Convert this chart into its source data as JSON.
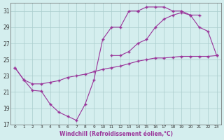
{
  "xlabel": "Windchill (Refroidissement éolien,°C)",
  "hours": [
    0,
    1,
    2,
    3,
    4,
    5,
    6,
    7,
    8,
    9,
    10,
    11,
    12,
    13,
    14,
    15,
    16,
    17,
    18,
    19,
    20,
    21,
    22,
    23
  ],
  "line_main": [
    24.0,
    22.5,
    21.2,
    21.1,
    19.5,
    18.5,
    18.0,
    17.5,
    19.5,
    22.5,
    27.5,
    29.0,
    29.0,
    31.0,
    31.0,
    null,
    null,
    null,
    null,
    null,
    null,
    null,
    null,
    null
  ],
  "line_top": [
    null,
    null,
    null,
    null,
    null,
    null,
    null,
    null,
    null,
    null,
    null,
    null,
    null,
    null,
    31.0,
    31.5,
    31.5,
    31.5,
    31.0,
    31.0,
    30.5,
    29.0,
    28.5,
    25.5
  ],
  "line_bot": [
    24.0,
    22.5,
    22.0,
    22.0,
    22.2,
    22.4,
    22.8,
    23.0,
    23.2,
    23.5,
    23.8,
    24.0,
    24.2,
    24.5,
    24.8,
    25.0,
    25.2,
    25.2,
    25.3,
    25.4,
    25.4,
    25.4,
    25.4,
    25.5
  ],
  "line_mid": [
    null,
    null,
    null,
    null,
    null,
    null,
    null,
    null,
    null,
    null,
    null,
    25.5,
    25.5,
    26.0,
    27.0,
    27.5,
    29.0,
    30.0,
    30.5,
    30.8,
    30.5,
    30.5,
    null,
    null
  ],
  "ylim": [
    17,
    32
  ],
  "yticks": [
    17,
    19,
    21,
    23,
    25,
    27,
    29,
    31
  ],
  "line_color": "#993399",
  "bg_color": "#d4eeee",
  "grid_color": "#aacccc"
}
